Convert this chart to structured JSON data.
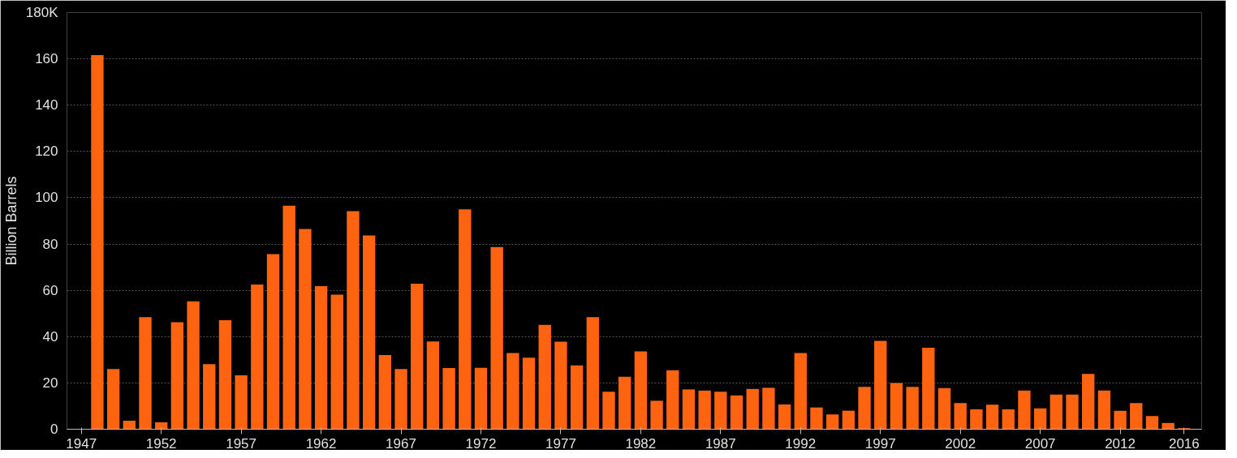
{
  "chart_data": {
    "type": "bar",
    "ylabel": "Billion Barrels",
    "x": [
      1948,
      1949,
      1950,
      1951,
      1952,
      1953,
      1954,
      1955,
      1956,
      1957,
      1958,
      1959,
      1960,
      1961,
      1962,
      1963,
      1964,
      1965,
      1966,
      1967,
      1968,
      1969,
      1970,
      1971,
      1972,
      1973,
      1974,
      1975,
      1976,
      1977,
      1978,
      1979,
      1980,
      1981,
      1982,
      1983,
      1984,
      1985,
      1986,
      1987,
      1988,
      1989,
      1990,
      1991,
      1992,
      1993,
      1994,
      1995,
      1996,
      1997,
      1998,
      1999,
      2000,
      2001,
      2002,
      2003,
      2004,
      2005,
      2006,
      2007,
      2008,
      2009,
      2010,
      2011,
      2012,
      2013,
      2014,
      2015,
      2016
    ],
    "series": [
      {
        "color": "#fe6410",
        "values": [
          161.6,
          26,
          3.7,
          48.4,
          3,
          46.2,
          55.2,
          28.1,
          47.1,
          23.3,
          62.5,
          75.6,
          96.6,
          86.5,
          61.8,
          58.1,
          94.2,
          83.7,
          32,
          26,
          62.9,
          37.9,
          26.4,
          95,
          26.5,
          78.7,
          32.9,
          30.9,
          45.1,
          37.8,
          27.6,
          48.4,
          16.2,
          22.7,
          33.6,
          12.3,
          25.5,
          17.2,
          16.7,
          16.2,
          14.6,
          17.4,
          17.9,
          10.7,
          32.9,
          9.4,
          6.4,
          8,
          18.3,
          38.2,
          20,
          18.3,
          35.2,
          17.8,
          11.3,
          8.6,
          10.6,
          8.6,
          16.7,
          9,
          15,
          15,
          23.9,
          16.7,
          8,
          11.3,
          5.7,
          2.7,
          0.4
        ]
      }
    ],
    "xlim": [
      1946.1,
      2017.1
    ],
    "xticks": [
      1947,
      1952,
      1957,
      1962,
      1967,
      1972,
      1977,
      1982,
      1987,
      1992,
      1997,
      2002,
      2007,
      2012,
      2016
    ],
    "ylim": [
      0,
      180
    ],
    "yticks": [
      0,
      20,
      40,
      60,
      80,
      100,
      120,
      140,
      160,
      {
        "value": 180,
        "label": "180K"
      }
    ],
    "grid": "y"
  }
}
